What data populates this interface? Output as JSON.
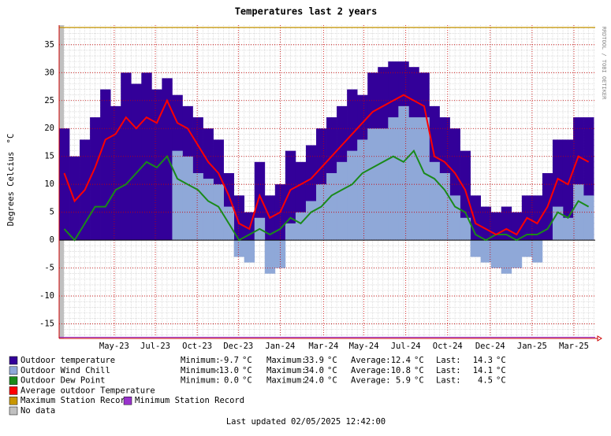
{
  "chart_data": {
    "type": "area",
    "title": "Temperatures last 2 years",
    "y_label": "Degrees Celcius",
    "unit": "°C",
    "watermark": "RRDTOOL / TOBI OETIKER",
    "footer": "Last updated 02/05/2025 12:42:00",
    "stat_labels": [
      "Minimum:",
      "Maximum:",
      "Average:",
      "Last:"
    ],
    "ylim": [
      -17.6,
      38.5
    ],
    "yticks": [
      -15,
      -10,
      -5,
      0,
      5,
      10,
      15,
      20,
      25,
      30,
      35
    ],
    "y_minor_step": 1,
    "xlim": [
      0,
      730
    ],
    "x_minor_step": 7,
    "xticks": [
      {
        "value": 75,
        "label": "May-23"
      },
      {
        "value": 131,
        "label": "Jul-23"
      },
      {
        "value": 188,
        "label": "Oct-23"
      },
      {
        "value": 244,
        "label": "Dec-23"
      },
      {
        "value": 301,
        "label": "Jan-24"
      },
      {
        "value": 360,
        "label": "Mar-24"
      },
      {
        "value": 415,
        "label": "May-24"
      },
      {
        "value": 472,
        "label": "Jul-24"
      },
      {
        "value": 529,
        "label": "Oct-24"
      },
      {
        "value": 587,
        "label": "Dec-24"
      },
      {
        "value": 644,
        "label": "Jan-25"
      },
      {
        "value": 701,
        "label": "Mar-25"
      }
    ],
    "grid": true,
    "x": [
      7,
      21,
      35,
      49,
      63,
      77,
      91,
      105,
      119,
      133,
      147,
      161,
      175,
      189,
      203,
      217,
      231,
      245,
      259,
      273,
      287,
      301,
      315,
      329,
      343,
      357,
      371,
      385,
      399,
      413,
      427,
      441,
      455,
      469,
      483,
      497,
      511,
      525,
      539,
      553,
      567,
      581,
      595,
      609,
      623,
      637,
      651,
      665,
      679,
      693,
      707,
      721
    ],
    "series": [
      {
        "name": "Outdoor temperature",
        "color": "#330099",
        "kind": "area",
        "stats": [
          "-9.7",
          "33.9",
          "12.4",
          "14.3"
        ],
        "values": [
          20,
          15,
          18,
          22,
          27,
          24,
          30,
          28,
          30,
          27,
          29,
          26,
          24,
          22,
          20,
          18,
          12,
          8,
          5,
          14,
          8,
          10,
          16,
          14,
          17,
          20,
          22,
          24,
          27,
          26,
          30,
          31,
          32,
          32,
          31,
          30,
          24,
          22,
          20,
          16,
          8,
          6,
          5,
          6,
          5,
          8,
          8,
          12,
          18,
          18,
          22,
          22
        ]
      },
      {
        "name": "Outdoor Wind Chill",
        "color": "#8fa8d8",
        "kind": "area",
        "stats": [
          "-13.0",
          "34.0",
          "10.8",
          "14.1"
        ],
        "values": [
          null,
          null,
          null,
          null,
          null,
          null,
          null,
          null,
          null,
          null,
          null,
          16,
          15,
          12,
          11,
          10,
          6,
          -3,
          -4,
          4,
          -6,
          -5,
          3,
          5,
          7,
          10,
          12,
          14,
          16,
          18,
          20,
          20,
          22,
          24,
          22,
          22,
          14,
          12,
          8,
          4,
          -3,
          -4,
          -5,
          -6,
          -5,
          -3,
          -4,
          0,
          6,
          4,
          10,
          8
        ]
      },
      {
        "name": "Outdoor Dew Point",
        "color": "#1a8a1a",
        "kind": "line",
        "stats": [
          "0.0",
          "24.0",
          "5.9",
          "4.5"
        ],
        "values": [
          2,
          0,
          3,
          6,
          6,
          9,
          10,
          12,
          14,
          13,
          15,
          11,
          10,
          9,
          7,
          6,
          3,
          0,
          1,
          2,
          1,
          2,
          4,
          3,
          5,
          6,
          8,
          9,
          10,
          12,
          13,
          14,
          15,
          14,
          16,
          12,
          11,
          9,
          6,
          5,
          1,
          0,
          1,
          1,
          0,
          1,
          1,
          2,
          5,
          4,
          7,
          6
        ]
      },
      {
        "name": "Average outdoor Temperature",
        "color": "#ff0000",
        "kind": "line",
        "values": [
          12,
          7,
          9,
          13,
          18,
          19,
          22,
          20,
          22,
          21,
          25,
          21,
          20,
          17,
          14,
          12,
          8,
          3,
          2,
          8,
          4,
          5,
          9,
          10,
          11,
          13,
          15,
          17,
          19,
          21,
          23,
          24,
          25,
          26,
          25,
          24,
          15,
          14,
          12,
          9,
          3,
          2,
          1,
          2,
          1,
          4,
          3,
          6,
          11,
          10,
          15,
          14
        ]
      }
    ],
    "records": [
      {
        "name": "Maximum Station Record",
        "color": "#c89600",
        "value": 38.1
      },
      {
        "name": "Minimum Station Record",
        "color": "#9933cc",
        "value": -17.4
      }
    ],
    "no_data": {
      "name": "No data",
      "color": "#c0c0c0"
    }
  }
}
